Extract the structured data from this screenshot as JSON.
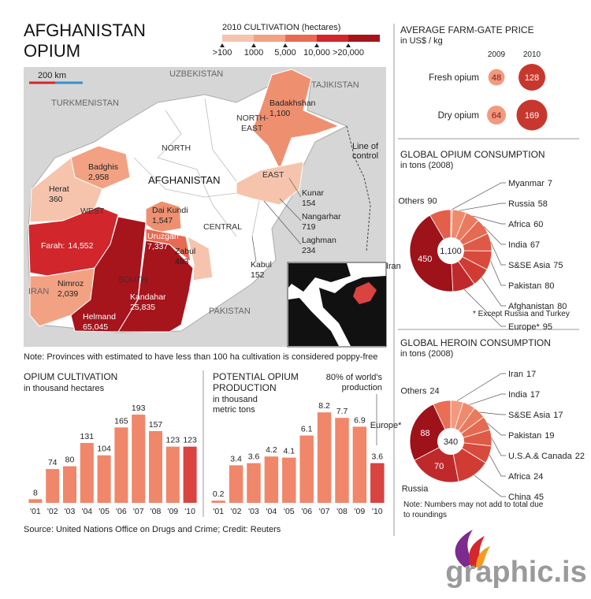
{
  "title": [
    "AFGHANISTAN",
    "OPIUM"
  ],
  "map": {
    "legend_title": "2010 CULTIVATION (hectares)",
    "legend_labels": [
      ">100",
      "1000",
      "5,000",
      "10,000",
      ">20,000"
    ],
    "legend_colors": [
      "#f6c4ad",
      "#f2a283",
      "#e86a52",
      "#d1262b",
      "#a6141c"
    ],
    "scale": "200 km",
    "countries": [
      "UZBEKISTAN",
      "TAJIKISTAN",
      "TURKMENISTAN",
      "IRAN",
      "PAKISTAN"
    ],
    "country": "AFGHANISTAN",
    "regions": [
      "NORTH",
      "EAST",
      "WEST",
      "CENTRAL",
      "SOUTH"
    ],
    "north_east": [
      "NORTH-",
      "EAST"
    ],
    "line_of_control": [
      "Line of",
      "control"
    ],
    "provinces": [
      {
        "name": "Badakhshan",
        "value": "1,100"
      },
      {
        "name": "Badghis",
        "value": "2,958"
      },
      {
        "name": "Herat",
        "value": "360"
      },
      {
        "name": "Farah:",
        "value": "14,552"
      },
      {
        "name": "Nimroz",
        "value": "2,039"
      },
      {
        "name": "Helmand",
        "value": "65,045"
      },
      {
        "name": "Kandahar",
        "value": "25,835"
      },
      {
        "name": "Dai Kundi",
        "value": "1,547"
      },
      {
        "name": "Uruzgan",
        "value": "7,337"
      },
      {
        "name": "Zabul",
        "value": "483"
      },
      {
        "name": "Kunar",
        "value": "154"
      },
      {
        "name": "Nangarhar",
        "value": "719"
      },
      {
        "name": "Laghman",
        "value": "234"
      },
      {
        "name": "Kabul",
        "value": "152"
      }
    ],
    "note": "Note: Provinces with estimated to have less than 100 ha cultivation is considered poppy-free"
  },
  "chart_data": [
    {
      "type": "bubble",
      "title": "AVERAGE FARM-GATE PRICE",
      "subtitle": "in US$ / kg",
      "categories": [
        "Fresh opium",
        "Dry opium"
      ],
      "series": [
        {
          "name": "2009",
          "color": "#f39a7e",
          "values": [
            48,
            64
          ]
        },
        {
          "name": "2010",
          "color": "#c8372d",
          "values": [
            128,
            169
          ]
        }
      ]
    },
    {
      "type": "pie",
      "title": "GLOBAL OPIUM CONSUMPTION",
      "subtitle": "in tons (2008)",
      "categories": [
        "Myanmar",
        "Russia",
        "Africa",
        "India",
        "S&SE Asia",
        "Pakistan",
        "Afghanistan",
        "Europe*",
        "Iran",
        "Others"
      ],
      "values": [
        7,
        58,
        60,
        67,
        75,
        80,
        80,
        95,
        450,
        90
      ],
      "colors": [
        "#f39a7e",
        "#ef8a6c",
        "#ea7a5e",
        "#e56a52",
        "#df5a46",
        "#d84a3c",
        "#d03c34",
        "#c0292b",
        "#9e1219",
        "#e25f4a"
      ],
      "total_label": "1,100",
      "footnote": "* Except Russia and Turkey"
    },
    {
      "type": "pie",
      "title": "GLOBAL HEROIN CONSUMPTION",
      "subtitle": "in tons (2008)",
      "categories": [
        "Iran",
        "India",
        "S&SE Asia",
        "Pakistan",
        "U.S.A.& Canada",
        "Africa",
        "China",
        "Russia",
        "Europe*",
        "Others"
      ],
      "values": [
        17,
        17,
        17,
        19,
        22,
        24,
        45,
        70,
        88,
        24
      ],
      "colors": [
        "#f39a7e",
        "#ef8a6c",
        "#ea7a5e",
        "#e56a52",
        "#df5a46",
        "#d84a3c",
        "#d03c34",
        "#c0292b",
        "#9e1219",
        "#e86e56"
      ],
      "total_label": "340",
      "footnote": [
        "Note: Numbers may not add to total due",
        "to roundings"
      ]
    },
    {
      "type": "bar",
      "title": "OPIUM CULTIVATION",
      "subtitle": "in thousand hectares",
      "categories": [
        "'01",
        "'02",
        "'03",
        "'04",
        "'05",
        "'06",
        "'07",
        "'08",
        "'09",
        "'10"
      ],
      "values": [
        8,
        74,
        80,
        131,
        104,
        165,
        193,
        157,
        123,
        123
      ],
      "colors": [
        "#f0866a",
        "#f0866a",
        "#f0866a",
        "#f0866a",
        "#f0866a",
        "#f0866a",
        "#f0866a",
        "#f0866a",
        "#f0866a",
        "#d94340"
      ],
      "ylim": [
        0,
        200
      ]
    },
    {
      "type": "bar",
      "title": [
        "POTENTIAL OPIUM",
        "PRODUCTION"
      ],
      "subtitle": [
        "in thousand",
        "metric tons"
      ],
      "annotation": [
        "80% of world's",
        "production"
      ],
      "categories": [
        "'01",
        "'02",
        "'03",
        "'04",
        "'05",
        "'06",
        "'07",
        "'08",
        "'09",
        "'10"
      ],
      "values": [
        0.2,
        3.4,
        3.6,
        4.2,
        4.1,
        6.1,
        8.2,
        7.7,
        6.9,
        3.6
      ],
      "colors": [
        "#f0866a",
        "#f0866a",
        "#f0866a",
        "#f0866a",
        "#f0866a",
        "#f0866a",
        "#f0866a",
        "#f0866a",
        "#f0866a",
        "#d94340"
      ],
      "ylim": [
        0,
        9
      ]
    }
  ],
  "source": "Source: United Nations Office on Drugs and Crime; Credit: Reuters",
  "logo": "graphic.is"
}
